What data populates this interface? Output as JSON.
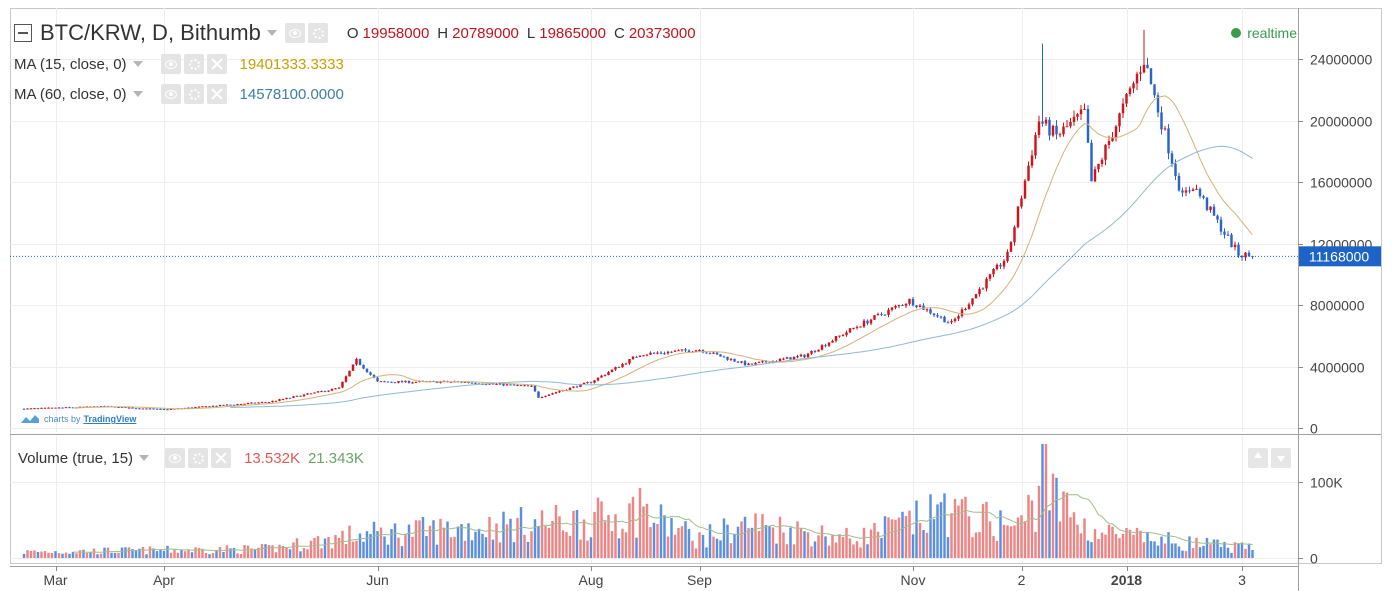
{
  "header": {
    "symbol": "BTC/KRW, D, Bithumb",
    "ohlc": [
      {
        "key": "O",
        "value": "19958000"
      },
      {
        "key": "H",
        "value": "20789000"
      },
      {
        "key": "L",
        "value": "19865000"
      },
      {
        "key": "C",
        "value": "20373000"
      }
    ],
    "realtime_label": "realtime"
  },
  "indicators": {
    "ma15": {
      "label": "MA (15, close, 0)",
      "value": "19401333.3333",
      "color": "#c9a100"
    },
    "ma60": {
      "label": "MA (60, close, 0)",
      "value": "14578100.0000",
      "color": "#3f7f9f"
    },
    "volume": {
      "label": "Volume (true, 15)",
      "value1": "13.532K",
      "value2": "21.343K",
      "color1": "#e05a5a",
      "color2": "#6ba46b"
    }
  },
  "watermark": {
    "prefix": "charts by",
    "brand": "TradingView"
  },
  "colors": {
    "up": "#d0141c",
    "down": "#2a64c8",
    "vol_up": "#ee8585",
    "vol_down": "#5b8fe0",
    "ma15_line": "#d4b27a",
    "ma60_line": "#93b8cf",
    "last_price_bg": "#1e63c6"
  },
  "chart_data": {
    "type": "candlestick",
    "interval": "D",
    "price_axis": {
      "ticks": [
        0,
        4000000,
        8000000,
        12000000,
        16000000,
        20000000,
        24000000
      ],
      "tick_labels": [
        "0",
        "4000000",
        "8000000",
        "12000000",
        "16000000",
        "20000000",
        "24000000"
      ],
      "range": [
        0,
        26800000
      ]
    },
    "last_price": 11168000,
    "last_price_label": "11168000",
    "volume_axis": {
      "ticks": [
        0,
        100000
      ],
      "tick_labels": [
        "0",
        "100K"
      ],
      "range": [
        0,
        150000
      ]
    },
    "time_axis": {
      "labels": [
        "Mar",
        "Apr",
        "Jun",
        "Aug",
        "Sep",
        "Nov",
        "2",
        "2018",
        "3"
      ],
      "bold": [
        "2018"
      ],
      "label_dates": [
        "2017-03-01",
        "2017-04-01",
        "2017-06-01",
        "2017-08-01",
        "2017-09-01",
        "2017-11-01",
        "2017-12-02",
        "2018-01-01",
        "2018-02-03"
      ],
      "grid_dates": [
        "2017-03-01",
        "2017-04-01",
        "2017-06-01",
        "2017-08-01",
        "2017-09-01",
        "2017-11-01",
        "2017-12-02",
        "2018-01-01",
        "2018-02-03"
      ],
      "range": [
        "2017-02-16",
        "2018-02-19"
      ]
    },
    "price_anchors": [
      [
        "2017-02-20",
        1250000
      ],
      [
        "2017-03-15",
        1400000
      ],
      [
        "2017-04-01",
        1200000
      ],
      [
        "2017-05-01",
        1700000
      ],
      [
        "2017-05-21",
        2600000
      ],
      [
        "2017-05-26",
        4400000
      ],
      [
        "2017-06-01",
        3000000
      ],
      [
        "2017-06-25",
        3000000
      ],
      [
        "2017-07-15",
        2700000
      ],
      [
        "2017-07-17",
        2000000
      ],
      [
        "2017-08-01",
        3000000
      ],
      [
        "2017-08-15",
        4800000
      ],
      [
        "2017-09-01",
        5100000
      ],
      [
        "2017-09-15",
        4100000
      ],
      [
        "2017-10-01",
        4700000
      ],
      [
        "2017-10-15",
        6500000
      ],
      [
        "2017-10-31",
        8300000
      ],
      [
        "2017-11-12",
        6800000
      ],
      [
        "2017-11-28",
        11200000
      ],
      [
        "2017-12-07",
        20000000
      ],
      [
        "2017-12-12",
        19000000
      ],
      [
        "2017-12-20",
        20500000
      ],
      [
        "2017-12-22",
        16000000
      ],
      [
        "2017-12-28",
        19200000
      ],
      [
        "2018-01-06",
        24000000
      ],
      [
        "2018-01-17",
        15000000
      ],
      [
        "2018-01-20",
        15800000
      ],
      [
        "2018-02-02",
        11300000
      ],
      [
        "2018-02-06",
        11168000
      ]
    ],
    "high_spikes": [
      [
        "2017-12-08",
        25000000
      ],
      [
        "2018-01-06",
        25900000
      ]
    ],
    "volume_anchors": [
      [
        "2017-02-20",
        8000
      ],
      [
        "2017-05-01",
        12000
      ],
      [
        "2017-05-26",
        30000
      ],
      [
        "2017-07-16",
        45000
      ],
      [
        "2017-08-01",
        50000
      ],
      [
        "2017-08-15",
        60000
      ],
      [
        "2017-09-01",
        25000
      ],
      [
        "2017-09-15",
        45000
      ],
      [
        "2017-10-15",
        25000
      ],
      [
        "2017-11-10",
        60000
      ],
      [
        "2017-12-01",
        40000
      ],
      [
        "2017-12-08",
        90000
      ],
      [
        "2017-12-22",
        35000
      ],
      [
        "2018-01-06",
        25000
      ],
      [
        "2018-02-06",
        12000
      ]
    ],
    "volume_spikes": [
      [
        "2017-08-15",
        92000
      ],
      [
        "2017-11-10",
        85000
      ],
      [
        "2017-12-07",
        95000
      ],
      [
        "2017-12-08",
        150000
      ],
      [
        "2017-12-09",
        150000
      ]
    ]
  }
}
